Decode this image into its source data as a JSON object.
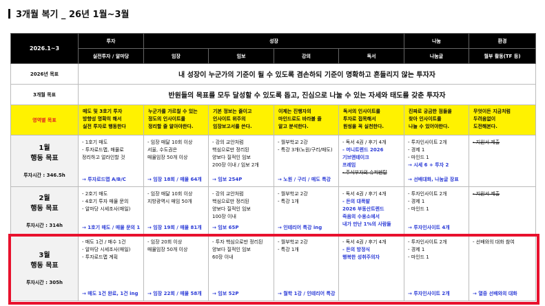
{
  "title": "3개월 복기 _ 26년 1월~3월",
  "header": {
    "period": "2026.1~3",
    "groups": [
      "투자",
      "성장",
      "나눔",
      "환경"
    ],
    "columns": [
      "실전투자 / 알마당",
      "임장",
      "임보",
      "강의",
      "독서",
      "나눔글",
      "월부 활동(TF 등)"
    ]
  },
  "goals": [
    {
      "label": "2026년 목표",
      "text": "내 성장이 누군가의 기준이 될 수 있도록 겸손하되 기준이 명확하고 흔들리지 않는 투자자"
    },
    {
      "label": "3개월 목표",
      "text": "반원들의 목표를 모두 달성할 수 있도록 돕고, 진심으로 나눌 수 있는 자세와 태도를 갖춘 투자자"
    }
  ],
  "area_goals": {
    "label": "영역별 목표",
    "cells": [
      [
        "매도 및 3호기 투자",
        "방향성 명확히 해서",
        "실전 투자로 행동한다"
      ],
      [
        "누군가를 가르칠 수 있는",
        "정도의 인사이트를",
        "정리할 줄 알아야한다."
      ],
      [
        "기본 정보는 줄이고",
        "인사이트 위주의",
        "임장보고서를 쓴다."
      ],
      [
        "이제는 진행자의",
        "마인드로도 바라볼 줄",
        "알고 분석한다."
      ],
      [
        "독서의 인사이트를",
        "투자로 접목해서",
        "원씽을 꼭 실천한다."
      ],
      [
        "진짜로 궁금한 점들을",
        "찾아 인사이트를",
        "나눌 수 있어야한다."
      ],
      [
        "무엇이든 지금처럼",
        "두려움없이",
        "도전해본다."
      ]
    ]
  },
  "months": [
    {
      "month": "1월",
      "sub": "행동 목표",
      "hours": "투자시간 : 346.5h",
      "cells": [
        {
          "items": [
            {
              "t": "- 1호기 매도",
              "s": ""
            },
            {
              "t": "- 투자로드맵, 매물로",
              "s": ""
            },
            {
              "t": "  정리하고 얼라인할 것",
              "s": ""
            }
          ],
          "result": "→ 투자로드맵 A/B/C"
        },
        {
          "items": [
            {
              "t": "- 임장 매달 10회 이상",
              "s": ""
            },
            {
              "t": "  서울, 수도권은",
              "s": ""
            },
            {
              "t": "  매물임장 50개 이상",
              "s": ""
            }
          ],
          "result": "→ 임장 18회 / 매물 64개"
        },
        {
          "items": [
            {
              "t": "- 강의 교안처럼",
              "s": ""
            },
            {
              "t": "  핵심으로만 정리된",
              "s": ""
            },
            {
              "t": "  양보다 질적인 임보",
              "s": ""
            },
            {
              "t": "  200장 이내 / 임보 2개",
              "s": ""
            }
          ],
          "result": "→ 임보 254P"
        },
        {
          "items": [
            {
              "t": "- 월부학교 2강",
              "s": ""
            },
            {
              "t": "- 특강 3개(노원/구리/매도)",
              "s": ""
            }
          ],
          "result": "→ 노원 / 구리 / 매도 특강"
        },
        {
          "items": [
            {
              "t": "- 독서 4권 / 후기 4개",
              "s": ""
            },
            {
              "t": "- 머니트렌드 2026",
              "s": "blue"
            },
            {
              "t": "  기브앤테이크",
              "s": "blue"
            },
            {
              "t": "  프레임",
              "s": "blue"
            },
            {
              "t": "- 주식부자의 슈퍼멘탈",
              "s": "strike"
            }
          ],
          "result": ""
        },
        {
          "items": [
            {
              "t": "- 투자인사이트 2개",
              "s": ""
            },
            {
              "t": "- 경제 1",
              "s": ""
            },
            {
              "t": "- 마인드 1",
              "s": ""
            },
            {
              "t": "→ 시세 6 + 투자 2",
              "s": "blue"
            }
          ],
          "result": "→ 선배대화, 나눔글 장표"
        },
        {
          "items": [
            {
              "t": "- 지원서 제출",
              "s": "strike"
            }
          ],
          "result": ""
        }
      ]
    },
    {
      "month": "2월",
      "sub": "행동 목표",
      "hours": "투자시간 : 314h",
      "cells": [
        {
          "items": [
            {
              "t": "- 2호기 매도",
              "s": ""
            },
            {
              "t": "- 4호기 투자 매물 문의",
              "s": ""
            },
            {
              "t": "- 알마당 시세조사(매일)",
              "s": ""
            }
          ],
          "result": "→ 1호기 매도 / 매물 문의 1"
        },
        {
          "items": [
            {
              "t": "- 임장 매달 10회 이상",
              "s": ""
            },
            {
              "t": "  지방광역시 매임 50개",
              "s": ""
            }
          ],
          "result": "→ 임장 19회 / 매물 81개"
        },
        {
          "items": [
            {
              "t": "- 강의 교안처럼",
              "s": ""
            },
            {
              "t": "  핵심으로만 정리된",
              "s": ""
            },
            {
              "t": "  양보다 질적인 임보",
              "s": ""
            },
            {
              "t": "  100장 이내",
              "s": ""
            }
          ],
          "result": "→ 임보 65P"
        },
        {
          "items": [
            {
              "t": "- 월부학교 2강",
              "s": ""
            },
            {
              "t": "- 특강 1개",
              "s": ""
            }
          ],
          "result": "→ 인테리어 특강 ing"
        },
        {
          "items": [
            {
              "t": "- 독서 4권 / 후기 4개",
              "s": ""
            },
            {
              "t": "- 돈의 대폭발",
              "s": "blue"
            },
            {
              "t": "  2026 부동산트렌드",
              "s": "blue"
            },
            {
              "t": "  죽음의 수용소에서",
              "s": "blue"
            },
            {
              "t": "  내가 만난 1%의 사람들",
              "s": "blue"
            }
          ],
          "result": ""
        },
        {
          "items": [
            {
              "t": "- 투자인사이트 2개",
              "s": ""
            },
            {
              "t": "- 경제 1",
              "s": ""
            },
            {
              "t": "- 마인드 1",
              "s": ""
            }
          ],
          "result": "→ 투자인사이트 4개"
        },
        {
          "items": [
            {
              "t": "- 지원서 제출",
              "s": "strike"
            }
          ],
          "result": ""
        }
      ]
    },
    {
      "month": "3월",
      "sub": "행동 목표",
      "hours": "투자시간 : 305h",
      "cells": [
        {
          "items": [
            {
              "t": "- 매도 1건 / 매수 1건",
              "s": ""
            },
            {
              "t": "- 알마당 시세조사(매일)",
              "s": ""
            },
            {
              "t": "- 투자로드맵 계획",
              "s": ""
            }
          ],
          "result": "→ 매도 1건 완료, 1건 ing"
        },
        {
          "items": [
            {
              "t": "- 임장 20회 이상",
              "s": ""
            },
            {
              "t": "  매물임장 50개 이상",
              "s": ""
            }
          ],
          "result": "→ 임장 22회 / 매물 58개"
        },
        {
          "items": [
            {
              "t": "- 투자 핵심으로만 정리된",
              "s": ""
            },
            {
              "t": "  양보다 질적인 임보",
              "s": ""
            },
            {
              "t": "  60장 이내",
              "s": ""
            }
          ],
          "result": "→ 임보 52P"
        },
        {
          "items": [
            {
              "t": "- 월부학교 2강",
              "s": ""
            },
            {
              "t": "- 특강 1개",
              "s": ""
            }
          ],
          "result": "→ 월학 1강 / 인테리어 특강"
        },
        {
          "items": [
            {
              "t": "- 독서 4권 / 후기 4개",
              "s": ""
            },
            {
              "t": "- 돈의 방정식",
              "s": "blue"
            },
            {
              "t": "  행복한 성취주의자",
              "s": "blue"
            }
          ],
          "result": ""
        },
        {
          "items": [
            {
              "t": "- 투자인사이트 2개",
              "s": ""
            },
            {
              "t": "- 경제 1",
              "s": ""
            },
            {
              "t": "- 마인드 1",
              "s": ""
            }
          ],
          "result": "→ 투자인사이트 2개"
        },
        {
          "items": [
            {
              "t": "- 선배와의 대화 참여",
              "s": ""
            }
          ],
          "result": "→ 열중 선배와의 대화"
        }
      ]
    }
  ],
  "colors": {
    "header_bg": "#000000",
    "yellow": "#fff200",
    "blue": "#2a3ad6",
    "highlight_border": "#e8112d",
    "area_label": "#e02020"
  }
}
